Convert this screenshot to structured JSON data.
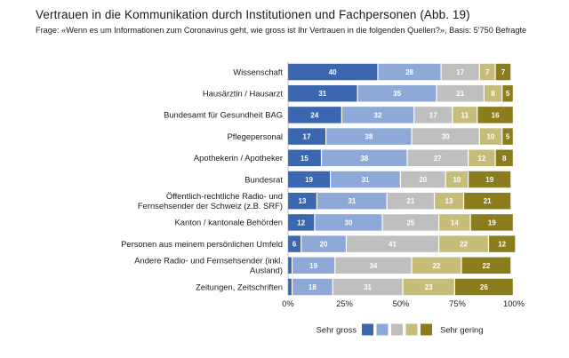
{
  "chart_data": {
    "type": "bar",
    "stacked": true,
    "orientation": "horizontal",
    "title": "Vertrauen in die Kommunikation durch Institutionen und Fachpersonen  (Abb. 19)",
    "subtitle": "Frage: «Wenn es um Informationen zum Coronavirus geht, wie gross ist Ihr Vertrauen in die folgenden Quellen?», Basis: 5'750 Befragte",
    "categories": [
      [
        "Wissenschaft"
      ],
      [
        "Hausärztin / Hausarzt"
      ],
      [
        "Bundesamt für Gesundheit BAG"
      ],
      [
        "Pflegepersonal"
      ],
      [
        "Apothekerin / Apotheker"
      ],
      [
        "Bundesrat"
      ],
      [
        "Öffentlich-rechtliche Radio- und",
        "Fernsehsender der Schweiz (z.B. SRF)"
      ],
      [
        "Kanton / kantonale Behörden"
      ],
      [
        "Personen aus meinem persönlichen Umfeld"
      ],
      [
        "Andere Radio- und Fernsehsender (inkl.",
        "Ausland)"
      ],
      [
        "Zeitungen, Zeitschriften"
      ]
    ],
    "series": [
      {
        "name": "Sehr gross",
        "color": "#3b67b0",
        "values": [
          40,
          31,
          24,
          17,
          15,
          19,
          13,
          12,
          6,
          2,
          2
        ]
      },
      {
        "name": "",
        "color": "#8ea9d8",
        "values": [
          28,
          35,
          32,
          38,
          38,
          31,
          31,
          30,
          20,
          19,
          18
        ]
      },
      {
        "name": "",
        "color": "#bfbfbf",
        "values": [
          17,
          21,
          17,
          30,
          27,
          20,
          21,
          25,
          41,
          34,
          31
        ]
      },
      {
        "name": "",
        "color": "#c7bd7a",
        "values": [
          7,
          8,
          11,
          10,
          12,
          10,
          13,
          14,
          22,
          22,
          23
        ]
      },
      {
        "name": "Sehr gering",
        "color": "#8b7d1e",
        "values": [
          7,
          5,
          16,
          5,
          8,
          19,
          21,
          19,
          12,
          22,
          26
        ]
      }
    ],
    "value_labels": [
      [
        "40",
        "28",
        "17",
        "7",
        "7"
      ],
      [
        "31",
        "35",
        "21",
        "8",
        "5"
      ],
      [
        "24",
        "32",
        "17",
        "11",
        "16"
      ],
      [
        "17",
        "38",
        "30",
        "10",
        "5"
      ],
      [
        "15",
        "38",
        "27",
        "12",
        "8"
      ],
      [
        "19",
        "31",
        "20",
        "10",
        "19"
      ],
      [
        "13",
        "31",
        "21",
        "13",
        "21"
      ],
      [
        "12",
        "30",
        "25",
        "14",
        "19"
      ],
      [
        "6",
        "20",
        "41",
        "22",
        "12"
      ],
      [
        "",
        "19",
        "34",
        "22",
        "22"
      ],
      [
        "",
        "18",
        "31",
        "23",
        "26"
      ]
    ],
    "xlim": [
      0,
      100
    ],
    "xticks": [
      "0%",
      "25%",
      "50%",
      "75%",
      "100%"
    ],
    "legend": {
      "position": "bottom-right",
      "left_label": "Sehr gross",
      "right_label": "Sehr gering"
    },
    "grid": false
  }
}
